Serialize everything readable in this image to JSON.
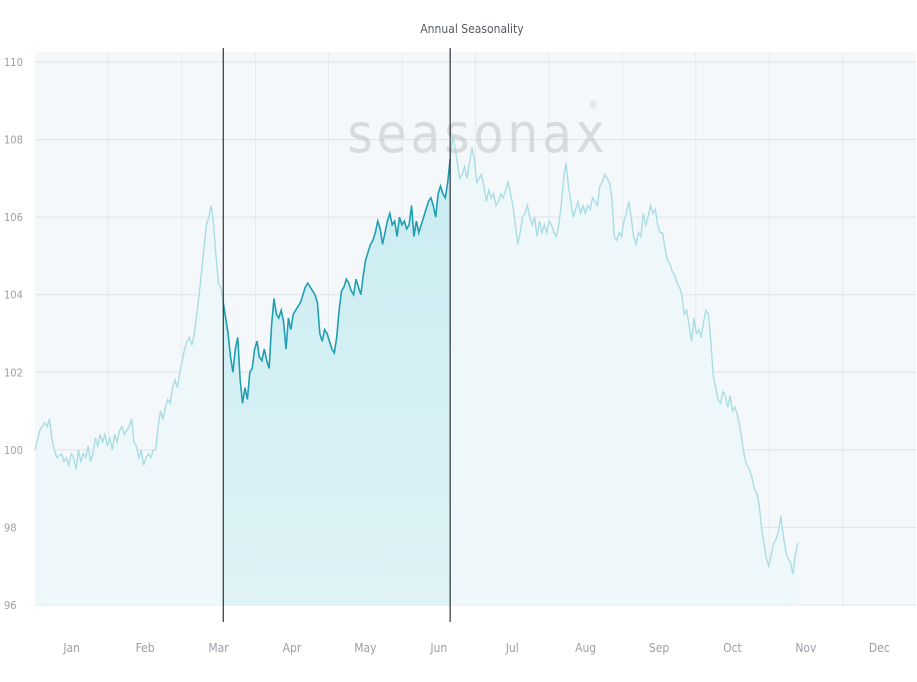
{
  "watermark": "seasonax",
  "watermark_mark": "®",
  "chart_data": {
    "type": "line",
    "title": "Annual Seasonality",
    "xlabel": "",
    "ylabel": "",
    "xlim": [
      0,
      365
    ],
    "ylim": [
      96,
      110
    ],
    "yticks": [
      "96",
      "98",
      "100",
      "102",
      "104",
      "106",
      "108",
      "110"
    ],
    "months": [
      "Jan",
      "Feb",
      "Mar",
      "Apr",
      "May",
      "Jun",
      "Jul",
      "Aug",
      "Sep",
      "Oct",
      "Nov",
      "Dec"
    ],
    "grid": true,
    "highlight": {
      "start": 78,
      "end": 172
    },
    "colors": {
      "line_highlight": "#1f9fb1",
      "line_dim": "#a9dde4",
      "fill_highlight_top": "#c9ecf1",
      "fill_highlight_bottom": "#dff3f6",
      "fill_dim": "#eef7f9",
      "plot_bg": "#f5f8fb",
      "grid": "#dde3e8",
      "text": "#9aa0a5",
      "title": "#555a5f",
      "divider": "#2e3338"
    },
    "series": [
      {
        "values": [
          [
            0,
            100.0
          ],
          [
            2,
            100.5
          ],
          [
            4,
            100.7
          ],
          [
            5,
            100.6
          ],
          [
            6,
            100.8
          ],
          [
            7,
            100.3
          ],
          [
            8,
            100.0
          ],
          [
            9,
            99.8
          ],
          [
            11,
            99.9
          ],
          [
            12,
            99.7
          ],
          [
            13,
            99.8
          ],
          [
            14,
            99.6
          ],
          [
            15,
            99.9
          ],
          [
            16,
            99.8
          ],
          [
            17,
            99.5
          ],
          [
            18,
            100.0
          ],
          [
            19,
            99.7
          ],
          [
            20,
            99.9
          ],
          [
            21,
            99.8
          ],
          [
            22,
            100.1
          ],
          [
            23,
            99.7
          ],
          [
            24,
            99.9
          ],
          [
            25,
            100.3
          ],
          [
            26,
            100.1
          ],
          [
            27,
            100.4
          ],
          [
            28,
            100.2
          ],
          [
            29,
            100.4
          ],
          [
            30,
            100.1
          ],
          [
            31,
            100.3
          ],
          [
            32,
            100.0
          ],
          [
            33,
            100.4
          ],
          [
            34,
            100.2
          ],
          [
            35,
            100.5
          ],
          [
            36,
            100.6
          ],
          [
            37,
            100.4
          ],
          [
            38,
            100.5
          ],
          [
            39,
            100.6
          ],
          [
            40,
            100.8
          ],
          [
            41,
            100.2
          ],
          [
            42,
            100.1
          ],
          [
            43,
            99.8
          ],
          [
            44,
            100.0
          ],
          [
            45,
            99.6
          ],
          [
            46,
            99.8
          ],
          [
            47,
            99.9
          ],
          [
            48,
            99.8
          ],
          [
            49,
            100.0
          ],
          [
            50,
            100.0
          ],
          [
            51,
            100.6
          ],
          [
            52,
            101.0
          ],
          [
            53,
            100.8
          ],
          [
            54,
            101.1
          ],
          [
            55,
            101.3
          ],
          [
            56,
            101.2
          ],
          [
            57,
            101.6
          ],
          [
            58,
            101.8
          ],
          [
            59,
            101.6
          ],
          [
            60,
            102.0
          ],
          [
            61,
            102.3
          ],
          [
            62,
            102.6
          ],
          [
            63,
            102.8
          ],
          [
            64,
            102.9
          ],
          [
            65,
            102.7
          ],
          [
            66,
            103.0
          ],
          [
            67,
            103.5
          ],
          [
            68,
            104.0
          ],
          [
            69,
            104.6
          ],
          [
            70,
            105.2
          ],
          [
            71,
            105.8
          ],
          [
            72,
            106.0
          ],
          [
            73,
            106.3
          ],
          [
            74,
            105.8
          ],
          [
            75,
            105.0
          ],
          [
            76,
            104.3
          ],
          [
            77,
            104.2
          ],
          [
            78,
            103.8
          ],
          [
            79,
            103.4
          ],
          [
            80,
            103.0
          ],
          [
            81,
            102.4
          ],
          [
            82,
            102.0
          ],
          [
            83,
            102.6
          ],
          [
            84,
            102.9
          ],
          [
            85,
            101.8
          ],
          [
            86,
            101.2
          ],
          [
            87,
            101.6
          ],
          [
            88,
            101.3
          ],
          [
            89,
            102.0
          ],
          [
            90,
            102.1
          ],
          [
            91,
            102.6
          ],
          [
            92,
            102.8
          ],
          [
            92.9,
            102.4
          ],
          [
            93,
            102.4
          ],
          [
            94,
            102.3
          ],
          [
            95,
            102.6
          ],
          [
            96,
            102.3
          ],
          [
            97,
            102.1
          ],
          [
            98,
            103.2
          ],
          [
            99,
            103.9
          ],
          [
            100,
            103.5
          ],
          [
            101,
            103.4
          ],
          [
            102,
            103.6
          ],
          [
            103,
            103.3
          ],
          [
            104,
            102.6
          ],
          [
            105,
            103.4
          ],
          [
            106,
            103.1
          ],
          [
            107,
            103.5
          ],
          [
            108,
            103.6
          ],
          [
            109,
            103.7
          ],
          [
            110,
            103.8
          ],
          [
            111,
            104.0
          ],
          [
            112,
            104.2
          ],
          [
            113,
            104.3
          ],
          [
            114,
            104.2
          ],
          [
            115,
            104.1
          ],
          [
            116,
            104.0
          ],
          [
            117,
            103.8
          ],
          [
            118,
            103.0
          ],
          [
            119,
            102.8
          ],
          [
            120,
            103.1
          ],
          [
            121,
            103.0
          ],
          [
            122,
            102.8
          ],
          [
            123,
            102.6
          ],
          [
            124,
            102.5
          ],
          [
            125,
            102.9
          ],
          [
            126,
            103.6
          ],
          [
            127,
            104.1
          ],
          [
            128,
            104.2
          ],
          [
            129,
            104.4
          ],
          [
            130,
            104.3
          ],
          [
            131,
            104.1
          ],
          [
            132,
            104.0
          ],
          [
            133,
            104.4
          ],
          [
            134,
            104.2
          ],
          [
            135,
            104.0
          ],
          [
            136,
            104.5
          ],
          [
            137,
            104.9
          ],
          [
            138,
            105.1
          ],
          [
            139,
            105.3
          ],
          [
            140,
            105.4
          ],
          [
            141,
            105.6
          ],
          [
            142,
            105.9
          ],
          [
            143,
            105.7
          ],
          [
            144,
            105.3
          ],
          [
            145,
            105.6
          ],
          [
            146,
            105.9
          ],
          [
            147,
            106.1
          ],
          [
            148,
            105.8
          ],
          [
            149,
            105.9
          ],
          [
            150,
            105.5
          ],
          [
            151,
            106.0
          ],
          [
            152,
            105.8
          ],
          [
            153,
            105.9
          ],
          [
            154,
            105.7
          ],
          [
            155,
            105.8
          ],
          [
            156,
            106.3
          ],
          [
            157,
            105.5
          ],
          [
            158,
            105.9
          ],
          [
            159,
            105.6
          ],
          [
            160,
            105.8
          ],
          [
            161,
            106.0
          ],
          [
            162,
            106.2
          ],
          [
            163,
            106.4
          ],
          [
            164,
            106.5
          ],
          [
            165,
            106.3
          ],
          [
            166,
            106.0
          ],
          [
            167,
            106.6
          ],
          [
            168,
            106.8
          ],
          [
            169,
            106.6
          ],
          [
            170,
            106.5
          ],
          [
            171,
            106.9
          ],
          [
            172,
            107.5
          ]
        ]
      },
      {
        "values": [
          [
            172,
            107.5
          ],
          [
            173,
            108.1
          ],
          [
            174,
            107.8
          ],
          [
            175,
            107.4
          ],
          [
            176,
            107.0
          ],
          [
            177,
            107.1
          ],
          [
            178,
            107.3
          ],
          [
            179,
            107.0
          ],
          [
            180,
            107.4
          ],
          [
            181,
            107.8
          ],
          [
            182,
            107.5
          ],
          [
            183,
            106.9
          ],
          [
            184,
            107.0
          ],
          [
            185,
            107.1
          ],
          [
            186,
            106.8
          ],
          [
            187,
            106.4
          ],
          [
            188,
            106.7
          ],
          [
            189,
            106.5
          ],
          [
            190,
            106.6
          ],
          [
            191,
            106.3
          ],
          [
            192,
            106.4
          ],
          [
            193,
            106.6
          ],
          [
            194,
            106.5
          ],
          [
            195,
            106.7
          ],
          [
            196,
            106.9
          ],
          [
            197,
            106.6
          ],
          [
            198,
            106.3
          ],
          [
            199,
            105.8
          ],
          [
            200,
            105.3
          ],
          [
            201,
            105.6
          ],
          [
            202,
            106.0
          ],
          [
            203,
            106.1
          ],
          [
            204,
            106.3
          ],
          [
            205,
            106.0
          ],
          [
            206,
            105.8
          ],
          [
            207,
            106.0
          ],
          [
            208,
            105.5
          ],
          [
            209,
            105.9
          ],
          [
            210,
            105.6
          ],
          [
            211,
            105.8
          ],
          [
            212,
            105.6
          ],
          [
            213,
            105.9
          ],
          [
            214,
            105.8
          ],
          [
            215,
            105.6
          ],
          [
            216,
            105.5
          ],
          [
            217,
            105.8
          ],
          [
            218,
            106.3
          ],
          [
            219,
            107.0
          ],
          [
            220,
            107.4
          ],
          [
            221,
            106.8
          ],
          [
            222,
            106.4
          ],
          [
            223,
            106.0
          ],
          [
            224,
            106.2
          ],
          [
            225,
            106.4
          ],
          [
            226,
            106.1
          ],
          [
            227,
            106.3
          ],
          [
            228,
            106.1
          ],
          [
            229,
            106.3
          ],
          [
            230,
            106.2
          ],
          [
            231,
            106.5
          ],
          [
            232,
            106.4
          ],
          [
            233,
            106.3
          ],
          [
            234,
            106.8
          ],
          [
            235,
            106.9
          ],
          [
            236,
            107.1
          ],
          [
            237,
            107.0
          ],
          [
            238,
            106.9
          ],
          [
            239,
            106.5
          ],
          [
            240,
            105.5
          ],
          [
            241,
            105.4
          ],
          [
            242,
            105.6
          ],
          [
            243,
            105.5
          ],
          [
            244,
            105.9
          ],
          [
            245,
            106.1
          ],
          [
            246,
            106.4
          ],
          [
            247,
            106.0
          ],
          [
            248,
            105.5
          ],
          [
            249,
            105.3
          ],
          [
            250,
            105.6
          ],
          [
            251,
            105.5
          ],
          [
            252,
            106.1
          ],
          [
            253,
            105.8
          ],
          [
            254,
            106.0
          ],
          [
            255,
            106.3
          ],
          [
            256,
            106.1
          ],
          [
            257,
            106.2
          ],
          [
            258,
            105.8
          ],
          [
            259,
            105.6
          ],
          [
            260,
            105.6
          ],
          [
            261,
            105.2
          ],
          [
            262,
            104.9
          ],
          [
            263,
            104.8
          ],
          [
            264,
            104.6
          ],
          [
            265,
            104.5
          ],
          [
            266,
            104.3
          ],
          [
            267,
            104.2
          ],
          [
            268,
            104.0
          ],
          [
            269,
            103.5
          ],
          [
            270,
            103.6
          ],
          [
            271,
            103.2
          ],
          [
            272,
            102.8
          ],
          [
            273,
            103.4
          ],
          [
            274,
            103.0
          ],
          [
            275,
            103.1
          ],
          [
            276,
            102.9
          ],
          [
            277,
            103.3
          ],
          [
            278,
            103.6
          ],
          [
            279,
            103.5
          ],
          [
            280,
            102.8
          ],
          [
            281,
            101.9
          ],
          [
            282,
            101.6
          ],
          [
            283,
            101.3
          ],
          [
            284,
            101.2
          ],
          [
            285,
            101.5
          ],
          [
            286,
            101.4
          ],
          [
            287,
            101.1
          ],
          [
            288,
            101.4
          ],
          [
            289,
            101.0
          ],
          [
            290,
            101.1
          ],
          [
            291,
            100.9
          ],
          [
            292,
            100.6
          ],
          [
            293,
            100.2
          ],
          [
            294,
            99.8
          ],
          [
            295,
            99.6
          ],
          [
            296,
            99.5
          ],
          [
            297,
            99.3
          ],
          [
            298,
            99.0
          ],
          [
            299,
            98.9
          ],
          [
            300,
            98.6
          ],
          [
            301,
            98.0
          ],
          [
            302,
            97.6
          ],
          [
            303,
            97.2
          ],
          [
            304,
            97.0
          ],
          [
            305,
            97.3
          ],
          [
            306,
            97.6
          ],
          [
            307,
            97.7
          ],
          [
            308,
            97.9
          ],
          [
            309,
            98.3
          ],
          [
            310,
            97.8
          ],
          [
            311,
            97.4
          ],
          [
            312,
            97.2
          ],
          [
            313,
            97.1
          ],
          [
            314,
            96.8
          ],
          [
            315,
            97.3
          ],
          [
            316,
            97.6
          ]
        ]
      }
    ]
  }
}
